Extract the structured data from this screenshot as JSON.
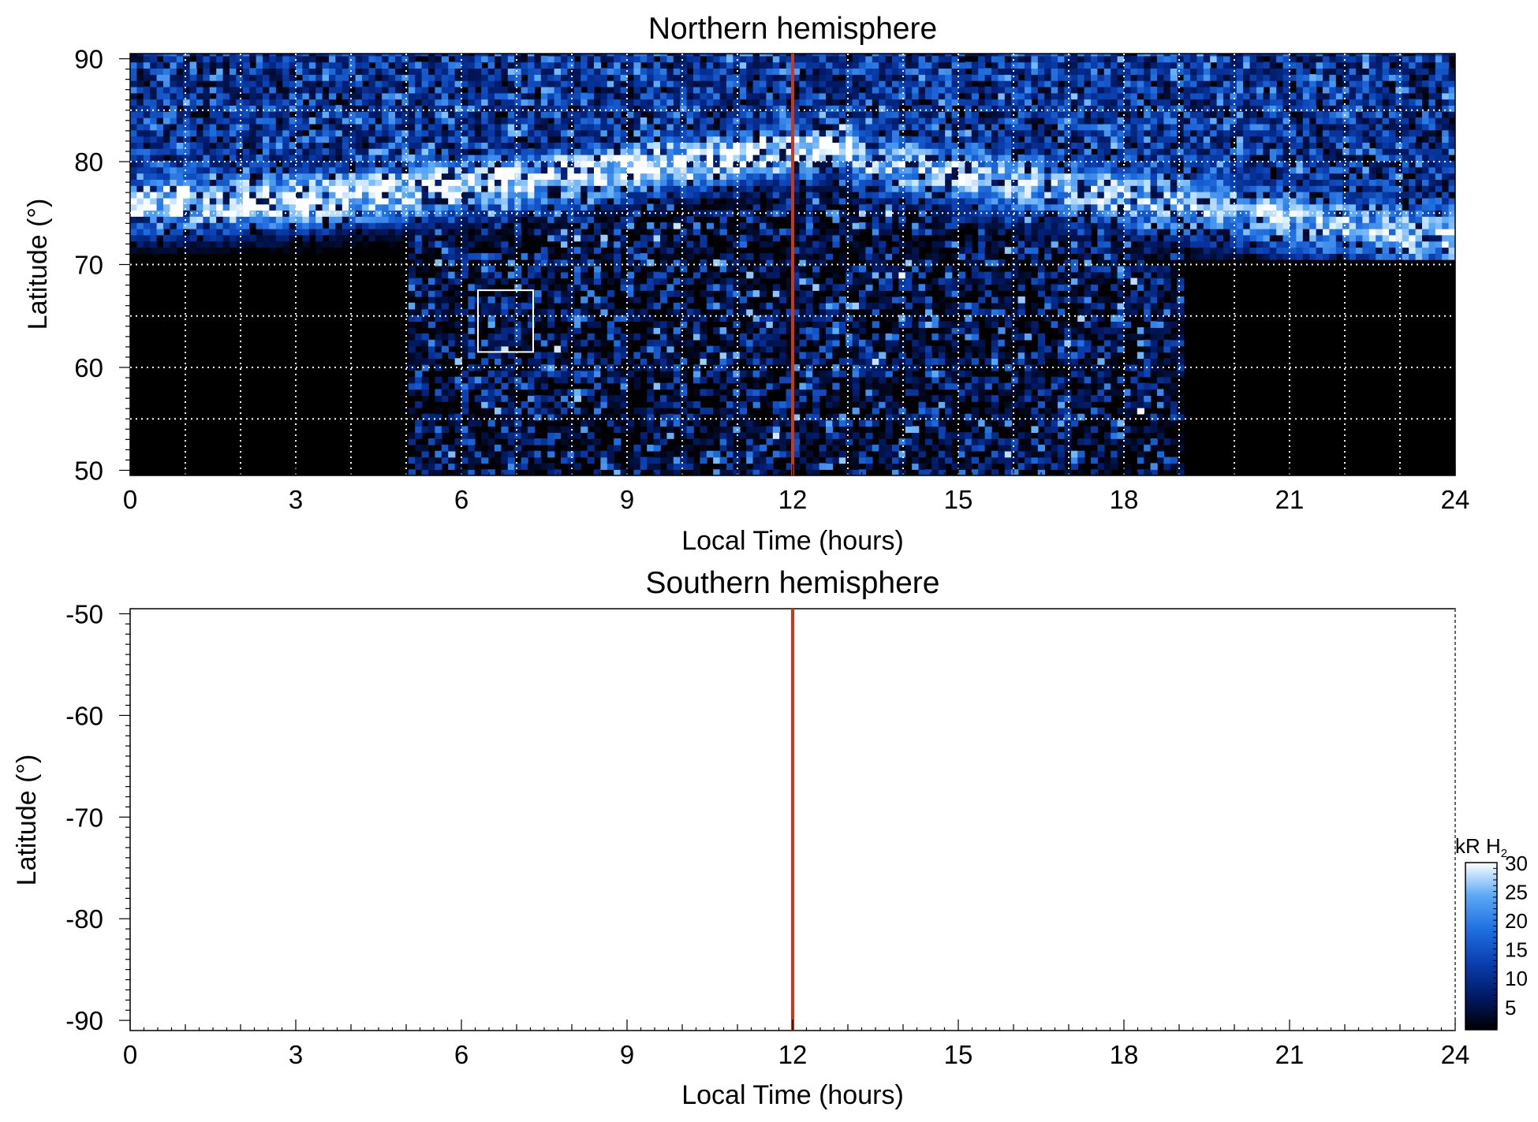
{
  "chart_data": [
    {
      "type": "heatmap",
      "title": "Northern hemisphere",
      "xlabel": "Local Time (hours)",
      "ylabel": "Latitude (°)",
      "xlim": [
        0,
        24
      ],
      "ylim": [
        49.5,
        90.5
      ],
      "x_ticks": [
        "0",
        "3",
        "6",
        "9",
        "12",
        "15",
        "18",
        "21",
        "24"
      ],
      "y_ticks": [
        "50",
        "60",
        "70",
        "80",
        "90"
      ],
      "grid": true,
      "grid_x": [
        1,
        2,
        3,
        4,
        5,
        6,
        7,
        8,
        9,
        10,
        11,
        12,
        13,
        14,
        15,
        16,
        17,
        18,
        19,
        20,
        21,
        22,
        23
      ],
      "grid_y": [
        55,
        60,
        65,
        70,
        75,
        80,
        85
      ],
      "highlight_box": {
        "x": [
          6.3,
          7.3
        ],
        "y": [
          61.5,
          67.5
        ]
      },
      "noon_line": {
        "x": 12,
        "color": "#c8391a"
      },
      "emission_features": [
        {
          "feature": "main auroral oval (dawn-noon)",
          "lt_range": [
            0,
            13
          ],
          "lat_range": [
            73,
            85
          ],
          "peak_kR": 30
        },
        {
          "feature": "auroral oval (afternoon-dusk)",
          "lt_range": [
            13,
            24
          ],
          "lat_range": [
            72,
            83
          ],
          "peak_kR": 25
        },
        {
          "feature": "diffuse equatorward emission",
          "lt_range": [
            5,
            19
          ],
          "lat_range": [
            50,
            72
          ],
          "peak_kR": 15
        }
      ],
      "no_data_regions": [
        {
          "lt_range": [
            0,
            4.5
          ],
          "lat_below": 70
        },
        {
          "lt_range": [
            19.3,
            24
          ],
          "lat_below": 70
        }
      ]
    },
    {
      "type": "heatmap",
      "title": "Southern hemisphere",
      "xlabel": "Local Time (hours)",
      "ylabel": "Latitude (°)",
      "xlim": [
        0,
        24
      ],
      "ylim": [
        -91,
        -49.5
      ],
      "x_ticks": [
        "0",
        "3",
        "6",
        "9",
        "12",
        "15",
        "18",
        "21",
        "24"
      ],
      "y_ticks": [
        "-50",
        "-60",
        "-70",
        "-80",
        "-90"
      ],
      "grid": false,
      "noon_line": {
        "x": 12,
        "color": "#c8391a"
      },
      "values": []
    }
  ],
  "colorbar": {
    "label": "kR H",
    "label_sub": "2",
    "range": [
      1,
      30
    ],
    "ticks": [
      "30",
      "25",
      "20",
      "15",
      "10",
      "5"
    ],
    "colors": [
      "#000000",
      "#001a66",
      "#0a3fb0",
      "#1f6fe0",
      "#5aa8f5",
      "#b8dcff",
      "#ffffff"
    ]
  }
}
